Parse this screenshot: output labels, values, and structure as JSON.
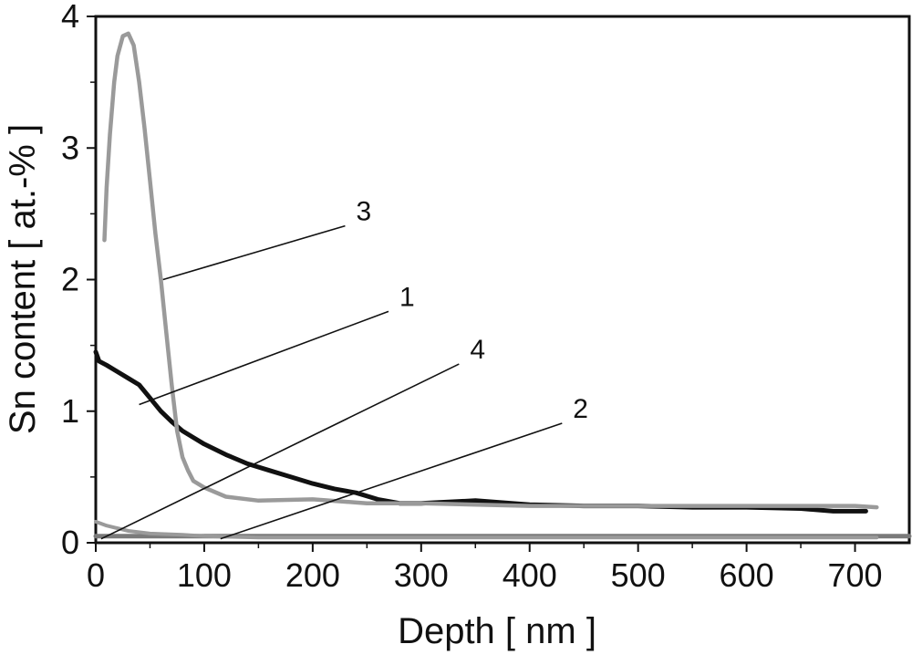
{
  "chart_data": {
    "type": "line",
    "title": "",
    "xlabel": "Depth [ nm ]",
    "ylabel": "Sn content [ at.-% ]",
    "xlim": [
      0,
      750
    ],
    "ylim": [
      0,
      4
    ],
    "xticks": [
      0,
      100,
      200,
      300,
      400,
      500,
      600,
      700
    ],
    "yticks": [
      0,
      1,
      2,
      3,
      4
    ],
    "grid": false,
    "legend": "none",
    "series": [
      {
        "name": "1",
        "color": "#111111",
        "x": [
          0,
          3,
          10,
          20,
          30,
          40,
          50,
          60,
          70,
          80,
          90,
          100,
          120,
          140,
          160,
          180,
          200,
          220,
          240,
          260,
          280,
          300,
          350,
          400,
          450,
          500,
          550,
          600,
          650,
          680,
          710
        ],
        "y": [
          1.45,
          1.38,
          1.35,
          1.3,
          1.25,
          1.2,
          1.1,
          1.0,
          0.92,
          0.85,
          0.8,
          0.75,
          0.67,
          0.6,
          0.55,
          0.5,
          0.45,
          0.41,
          0.38,
          0.33,
          0.3,
          0.3,
          0.32,
          0.29,
          0.28,
          0.28,
          0.27,
          0.27,
          0.26,
          0.24,
          0.24
        ]
      },
      {
        "name": "2",
        "color": "#7a7a7a",
        "x": [
          0,
          750
        ],
        "y": [
          0.05,
          0.05
        ]
      },
      {
        "name": "3",
        "color": "#9a9a9a",
        "x": [
          8,
          10,
          13,
          17,
          20,
          25,
          30,
          35,
          40,
          45,
          50,
          55,
          60,
          65,
          70,
          75,
          80,
          85,
          90,
          100,
          120,
          150,
          200,
          250,
          300,
          400,
          500,
          600,
          700,
          720
        ],
        "y": [
          2.3,
          2.7,
          3.1,
          3.5,
          3.7,
          3.85,
          3.87,
          3.78,
          3.5,
          3.15,
          2.75,
          2.35,
          2.0,
          1.6,
          1.2,
          0.85,
          0.65,
          0.55,
          0.47,
          0.42,
          0.35,
          0.32,
          0.33,
          0.3,
          0.3,
          0.28,
          0.28,
          0.28,
          0.28,
          0.27
        ]
      },
      {
        "name": "4",
        "color": "#9a9a9a",
        "x": [
          0,
          10,
          20,
          30,
          50,
          80,
          100,
          150,
          200,
          300,
          500,
          720
        ],
        "y": [
          0.16,
          0.13,
          0.11,
          0.09,
          0.07,
          0.06,
          0.05,
          0.04,
          0.04,
          0.04,
          0.04,
          0.04
        ]
      }
    ],
    "annotations": [
      {
        "text": "3",
        "label_x": 240,
        "label_y": 2.45,
        "x": 62,
        "y": 2.0
      },
      {
        "text": "1",
        "label_x": 280,
        "label_y": 1.8,
        "x": 40,
        "y": 1.05
      },
      {
        "text": "4",
        "label_x": 345,
        "label_y": 1.4,
        "x": 5,
        "y": 0.03
      },
      {
        "text": "2",
        "label_x": 440,
        "label_y": 0.95,
        "x": 115,
        "y": 0.03
      }
    ]
  }
}
